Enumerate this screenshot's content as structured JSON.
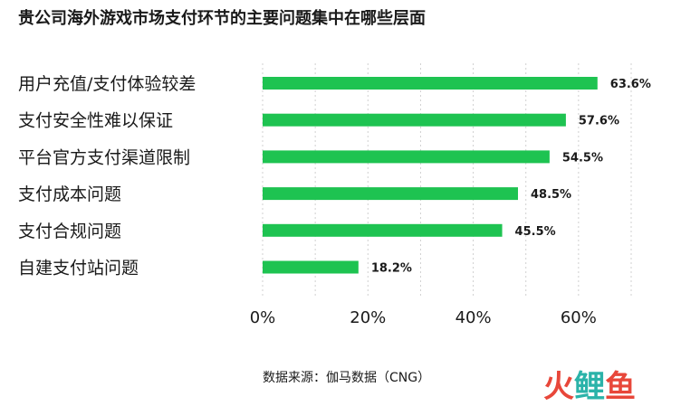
{
  "title": "贵公司海外游戏市场支付环节的主要问题集中在哪些层面",
  "source": "数据来源：伽马数据（CNG）",
  "watermark": [
    "火",
    "鲤",
    "鱼"
  ],
  "chart_data": {
    "type": "bar",
    "orientation": "horizontal",
    "categories": [
      "用户充值/支付体验较差",
      "支付安全性难以保证",
      "平台官方支付渠道限制",
      "支付成本问题",
      "支付合规问题",
      "自建支付站问题"
    ],
    "values": [
      63.6,
      57.6,
      54.5,
      48.5,
      45.5,
      18.2
    ],
    "value_labels": [
      "63.6%",
      "57.6%",
      "54.5%",
      "48.5%",
      "45.5%",
      "18.2%"
    ],
    "xlim": [
      0,
      70
    ],
    "xticks": [
      0,
      20,
      40,
      60
    ],
    "xtick_labels": [
      "0%",
      "20%",
      "40%",
      "60%"
    ],
    "grid": "vertical dotted",
    "colors": {
      "bar": "#1ec351",
      "grid": "#d0d0d0",
      "wm_red": "#e8473a",
      "wm_teal": "#2bb3a9"
    }
  }
}
